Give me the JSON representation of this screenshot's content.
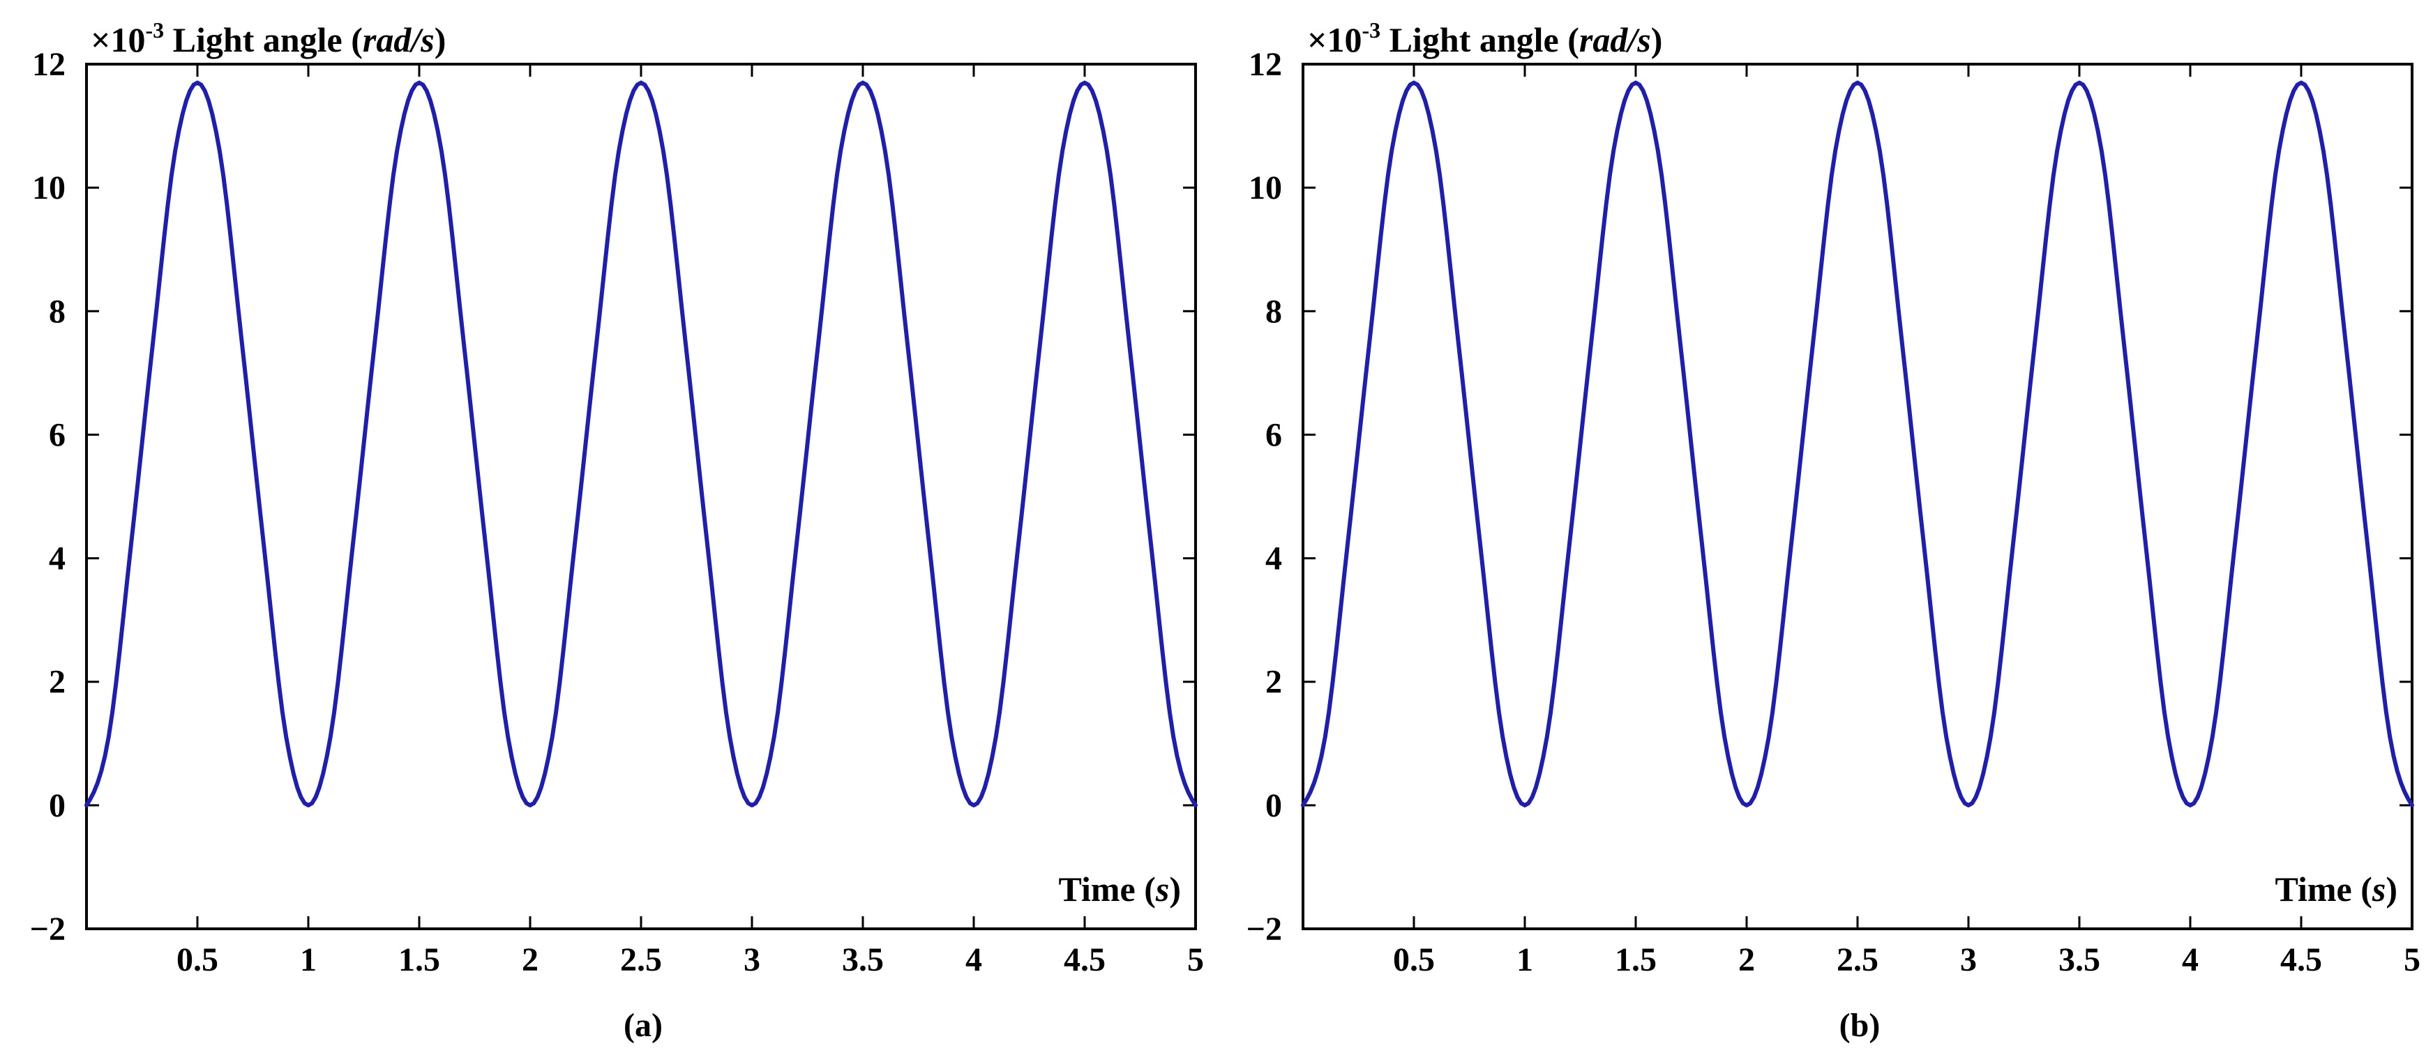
{
  "colors": {
    "series": "#1f1fa8",
    "axis": "#000000",
    "background": "#ffffff"
  },
  "chart_data": [
    {
      "type": "line",
      "panel_label": "(a)",
      "ylabel_prefix": "×10",
      "ylabel_exp": "-3",
      "ylabel_text": " Light angle (",
      "ylabel_unit": "rad/s",
      "ylabel_close": ")",
      "xlabel_text": "Time (",
      "xlabel_unit": "s",
      "xlabel_close": ")",
      "xlim": [
        0,
        5
      ],
      "ylim": [
        -2,
        12
      ],
      "x_ticks": [
        0.5,
        1,
        1.5,
        2,
        2.5,
        3,
        3.5,
        4,
        4.5,
        5
      ],
      "x_tick_labels": [
        "0.5",
        "1",
        "1.5",
        "2",
        "2.5",
        "3",
        "3.5",
        "4",
        "4.5",
        "5"
      ],
      "y_ticks": [
        -2,
        0,
        2,
        4,
        6,
        8,
        10,
        12
      ],
      "y_tick_labels": [
        "−2",
        "0",
        "2",
        "4",
        "6",
        "8",
        "10",
        "12"
      ],
      "grid": false,
      "series": [
        {
          "x": [
            0,
            0.1,
            0.2,
            0.3,
            0.4,
            0.5,
            0.6,
            0.7,
            0.8,
            0.9,
            1.0,
            1.1,
            1.2,
            1.3,
            1.4,
            1.5,
            1.6,
            1.7,
            1.8,
            1.9,
            2.0,
            2.1,
            2.2,
            2.3,
            2.4,
            2.5,
            2.6,
            2.7,
            2.8,
            2.9,
            3.0,
            3.1,
            3.2,
            3.3,
            3.4,
            3.5,
            3.6,
            3.7,
            3.8,
            3.9,
            4.0,
            4.1,
            4.2,
            4.3,
            4.4,
            4.5,
            4.6,
            4.7,
            4.8,
            4.9,
            5.0
          ],
          "y": [
            0,
            1.11,
            4.19,
            7.51,
            10.6,
            11.7,
            10.6,
            7.51,
            4.19,
            1.11,
            0,
            1.11,
            4.19,
            7.51,
            10.6,
            11.7,
            10.6,
            7.51,
            4.19,
            1.11,
            0,
            1.11,
            4.19,
            7.51,
            10.6,
            11.7,
            10.6,
            7.51,
            4.19,
            1.11,
            0,
            1.11,
            4.19,
            7.51,
            10.6,
            11.7,
            10.6,
            7.51,
            4.19,
            1.11,
            0,
            1.11,
            4.19,
            7.51,
            10.6,
            11.7,
            10.6,
            7.51,
            4.19,
            1.11,
            0
          ]
        }
      ]
    },
    {
      "type": "line",
      "panel_label": "(b)",
      "ylabel_prefix": "×10",
      "ylabel_exp": "-3",
      "ylabel_text": " Light angle (",
      "ylabel_unit": "rad/s",
      "ylabel_close": ")",
      "xlabel_text": "Time (",
      "xlabel_unit": "s",
      "xlabel_close": ")",
      "xlim": [
        0,
        5
      ],
      "ylim": [
        -2,
        12
      ],
      "x_ticks": [
        0.5,
        1,
        1.5,
        2,
        2.5,
        3,
        3.5,
        4,
        4.5,
        5
      ],
      "x_tick_labels": [
        "0.5",
        "1",
        "1.5",
        "2",
        "2.5",
        "3",
        "3.5",
        "4",
        "4.5",
        "5"
      ],
      "y_ticks": [
        -2,
        0,
        2,
        4,
        6,
        8,
        10,
        12
      ],
      "y_tick_labels": [
        "−2",
        "0",
        "2",
        "4",
        "6",
        "8",
        "10",
        "12"
      ],
      "grid": false,
      "series": [
        {
          "x": [
            0,
            0.1,
            0.2,
            0.3,
            0.4,
            0.5,
            0.6,
            0.7,
            0.8,
            0.9,
            1.0,
            1.1,
            1.2,
            1.3,
            1.4,
            1.5,
            1.6,
            1.7,
            1.8,
            1.9,
            2.0,
            2.1,
            2.2,
            2.3,
            2.4,
            2.5,
            2.6,
            2.7,
            2.8,
            2.9,
            3.0,
            3.1,
            3.2,
            3.3,
            3.4,
            3.5,
            3.6,
            3.7,
            3.8,
            3.9,
            4.0,
            4.1,
            4.2,
            4.3,
            4.4,
            4.5,
            4.6,
            4.7,
            4.8,
            4.9,
            5.0
          ],
          "y": [
            0,
            1.11,
            4.19,
            7.51,
            10.6,
            11.7,
            10.6,
            7.51,
            4.19,
            1.11,
            0,
            1.11,
            4.19,
            7.51,
            10.6,
            11.7,
            10.6,
            7.51,
            4.19,
            1.11,
            0,
            1.11,
            4.19,
            7.51,
            10.6,
            11.7,
            10.6,
            7.51,
            4.19,
            1.11,
            0,
            1.11,
            4.19,
            7.51,
            10.6,
            11.7,
            10.6,
            7.51,
            4.19,
            1.11,
            0,
            1.11,
            4.19,
            7.51,
            10.6,
            11.7,
            10.6,
            7.51,
            4.19,
            1.11,
            0
          ]
        }
      ]
    }
  ]
}
